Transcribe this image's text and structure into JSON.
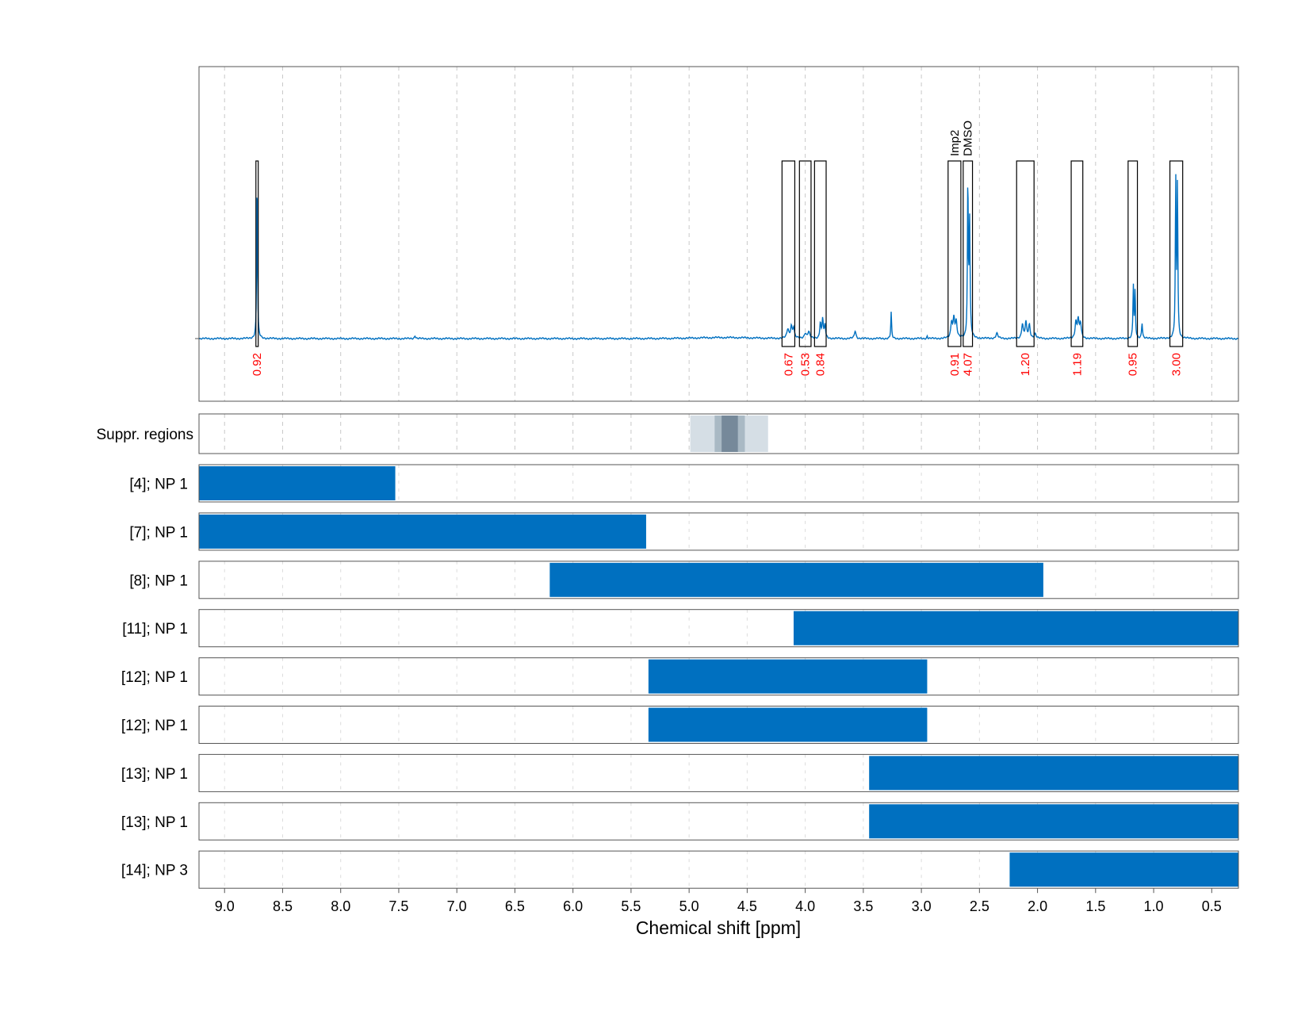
{
  "chart_data": {
    "type": "line",
    "title": "",
    "xlabel": "Chemical shift [ppm]",
    "ylabel": "",
    "xlim": [
      9.22,
      0.27
    ],
    "x_reversed": true,
    "grid": true,
    "x_ticks": [
      9.0,
      8.5,
      8.0,
      7.5,
      7.0,
      6.5,
      6.0,
      5.5,
      5.0,
      4.5,
      4.0,
      3.5,
      3.0,
      2.5,
      2.0,
      1.5,
      1.0,
      0.5
    ],
    "x_tick_labels": [
      "9.0",
      "8.5",
      "8.0",
      "7.5",
      "7.0",
      "6.5",
      "6.0",
      "5.5",
      "5.0",
      "4.5",
      "4.0",
      "3.5",
      "3.0",
      "2.5",
      "2.0",
      "1.5",
      "1.0",
      "0.5"
    ],
    "spectrum": {
      "color": "#0070C0",
      "peaks": [
        {
          "x": 8.72,
          "h": 0.63,
          "w": 0.004
        },
        {
          "x": 7.36,
          "h": 0.012,
          "w": 0.006
        },
        {
          "x": 4.15,
          "h": 0.035,
          "w": 0.01
        },
        {
          "x": 4.12,
          "h": 0.045,
          "w": 0.008
        },
        {
          "x": 4.1,
          "h": 0.04,
          "w": 0.008
        },
        {
          "x": 4.0,
          "h": 0.02,
          "w": 0.01
        },
        {
          "x": 3.97,
          "h": 0.025,
          "w": 0.01
        },
        {
          "x": 3.87,
          "h": 0.06,
          "w": 0.006
        },
        {
          "x": 3.85,
          "h": 0.075,
          "w": 0.006
        },
        {
          "x": 3.83,
          "h": 0.05,
          "w": 0.006
        },
        {
          "x": 3.57,
          "h": 0.03,
          "w": 0.008
        },
        {
          "x": 3.26,
          "h": 0.1,
          "w": 0.004
        },
        {
          "x": 2.95,
          "h": 0.01,
          "w": 0.004
        },
        {
          "x": 2.74,
          "h": 0.06,
          "w": 0.008
        },
        {
          "x": 2.72,
          "h": 0.075,
          "w": 0.008
        },
        {
          "x": 2.7,
          "h": 0.06,
          "w": 0.008
        },
        {
          "x": 2.6,
          "h": 0.6,
          "w": 0.004
        },
        {
          "x": 2.585,
          "h": 0.45,
          "w": 0.005
        },
        {
          "x": 2.35,
          "h": 0.02,
          "w": 0.01
        },
        {
          "x": 2.13,
          "h": 0.055,
          "w": 0.008
        },
        {
          "x": 2.1,
          "h": 0.06,
          "w": 0.008
        },
        {
          "x": 2.07,
          "h": 0.05,
          "w": 0.008
        },
        {
          "x": 2.02,
          "h": 0.018,
          "w": 0.01
        },
        {
          "x": 1.67,
          "h": 0.06,
          "w": 0.008
        },
        {
          "x": 1.65,
          "h": 0.07,
          "w": 0.008
        },
        {
          "x": 1.63,
          "h": 0.055,
          "w": 0.008
        },
        {
          "x": 1.175,
          "h": 0.2,
          "w": 0.004
        },
        {
          "x": 1.16,
          "h": 0.18,
          "w": 0.004
        },
        {
          "x": 1.1,
          "h": 0.06,
          "w": 0.005
        },
        {
          "x": 0.81,
          "h": 0.6,
          "w": 0.004
        },
        {
          "x": 0.795,
          "h": 0.58,
          "w": 0.004
        }
      ]
    },
    "integration_regions": [
      {
        "x1": 8.73,
        "x2": 8.71,
        "value": "0.92"
      },
      {
        "x1": 4.2,
        "x2": 4.09,
        "value": "0.67"
      },
      {
        "x1": 4.05,
        "x2": 3.95,
        "value": "0.53"
      },
      {
        "x1": 3.92,
        "x2": 3.82,
        "value": "0.84"
      },
      {
        "x1": 2.77,
        "x2": 2.66,
        "value": "0.91",
        "name": "Imp2"
      },
      {
        "x1": 2.64,
        "x2": 2.56,
        "value": "4.07",
        "name": "DMSO"
      },
      {
        "x1": 2.18,
        "x2": 2.03,
        "value": "1.20"
      },
      {
        "x1": 1.71,
        "x2": 1.61,
        "value": "1.19"
      },
      {
        "x1": 1.22,
        "x2": 1.14,
        "value": "0.95"
      },
      {
        "x1": 0.86,
        "x2": 0.75,
        "value": "3.00"
      }
    ],
    "suppression": {
      "label": "Suppr. regions",
      "bands": [
        {
          "x1": 4.99,
          "x2": 4.32,
          "color": "#d5dee5"
        },
        {
          "x1": 4.78,
          "x2": 4.52,
          "color": "#a9b9c4"
        },
        {
          "x1": 4.72,
          "x2": 4.58,
          "color": "#76899a"
        }
      ]
    },
    "ranges": [
      {
        "label": "[4]; NP 1",
        "x1": 9.22,
        "x2": 7.53
      },
      {
        "label": "[7]; NP 1",
        "x1": 9.22,
        "x2": 5.37
      },
      {
        "label": "[8]; NP 1",
        "x1": 6.2,
        "x2": 1.95
      },
      {
        "label": "[11]; NP 1",
        "x1": 4.1,
        "x2": 0.27
      },
      {
        "label": "[12]; NP 1",
        "x1": 5.35,
        "x2": 2.95
      },
      {
        "label": "[12]; NP 1",
        "x1": 5.35,
        "x2": 2.95
      },
      {
        "label": "[13]; NP 1",
        "x1": 3.45,
        "x2": 0.27
      },
      {
        "label": "[13]; NP 1",
        "x1": 3.45,
        "x2": 0.27
      },
      {
        "label": "[14]; NP 3",
        "x1": 2.24,
        "x2": 0.27
      }
    ],
    "range_color": "#0070C0",
    "integral_color": "#FF0000"
  }
}
